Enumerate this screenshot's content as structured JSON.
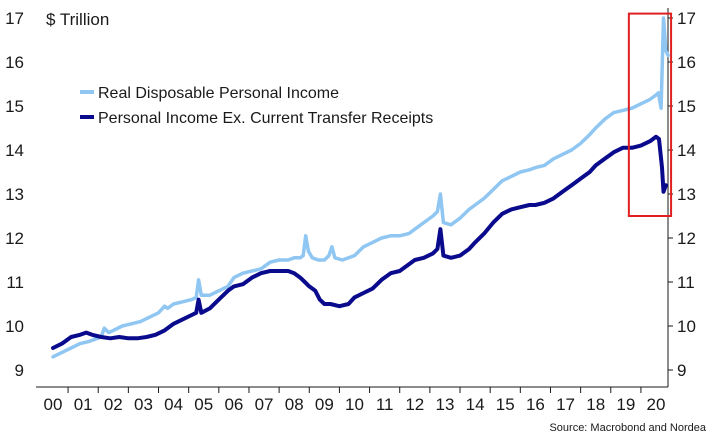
{
  "chart_data": {
    "type": "line",
    "unit_label": "$ Trillion",
    "source": "Source: Macrobond and Nordea",
    "ylim": [
      9,
      17
    ],
    "y_ticks": [
      9,
      10,
      11,
      12,
      13,
      14,
      15,
      16,
      17
    ],
    "xlim": [
      2000,
      2020.75
    ],
    "x_ticks": [
      "00",
      "01",
      "02",
      "03",
      "04",
      "05",
      "06",
      "07",
      "08",
      "09",
      "10",
      "11",
      "12",
      "13",
      "14",
      "15",
      "16",
      "17",
      "18",
      "19",
      "20"
    ],
    "legend_placement": "top-left",
    "highlight": {
      "x_range": [
        2019.1,
        2020.5
      ],
      "y_range": [
        12.5,
        17.1
      ],
      "color": "#e02020"
    },
    "series": [
      {
        "name": "Real Disposable Personal Income",
        "color": "#8fc6f2",
        "points": [
          [
            2000.0,
            9.3
          ],
          [
            2000.3,
            9.4
          ],
          [
            2000.6,
            9.5
          ],
          [
            2000.9,
            9.6
          ],
          [
            2001.2,
            9.65
          ],
          [
            2001.4,
            9.7
          ],
          [
            2001.6,
            9.75
          ],
          [
            2001.7,
            9.95
          ],
          [
            2001.85,
            9.85
          ],
          [
            2002.0,
            9.9
          ],
          [
            2002.3,
            10.0
          ],
          [
            2002.6,
            10.05
          ],
          [
            2002.9,
            10.1
          ],
          [
            2003.2,
            10.2
          ],
          [
            2003.5,
            10.3
          ],
          [
            2003.7,
            10.45
          ],
          [
            2003.8,
            10.4
          ],
          [
            2004.0,
            10.5
          ],
          [
            2004.3,
            10.55
          ],
          [
            2004.6,
            10.6
          ],
          [
            2004.75,
            10.65
          ],
          [
            2004.83,
            11.05
          ],
          [
            2004.92,
            10.7
          ],
          [
            2005.2,
            10.7
          ],
          [
            2005.5,
            10.8
          ],
          [
            2005.8,
            10.9
          ],
          [
            2006.0,
            11.1
          ],
          [
            2006.3,
            11.2
          ],
          [
            2006.6,
            11.25
          ],
          [
            2006.9,
            11.3
          ],
          [
            2007.2,
            11.45
          ],
          [
            2007.5,
            11.5
          ],
          [
            2007.8,
            11.5
          ],
          [
            2008.0,
            11.55
          ],
          [
            2008.2,
            11.55
          ],
          [
            2008.3,
            11.6
          ],
          [
            2008.38,
            12.05
          ],
          [
            2008.47,
            11.7
          ],
          [
            2008.6,
            11.55
          ],
          [
            2008.8,
            11.5
          ],
          [
            2009.0,
            11.5
          ],
          [
            2009.15,
            11.6
          ],
          [
            2009.25,
            11.8
          ],
          [
            2009.35,
            11.55
          ],
          [
            2009.6,
            11.5
          ],
          [
            2010.0,
            11.6
          ],
          [
            2010.3,
            11.8
          ],
          [
            2010.6,
            11.9
          ],
          [
            2010.9,
            12.0
          ],
          [
            2011.2,
            12.05
          ],
          [
            2011.5,
            12.05
          ],
          [
            2011.8,
            12.1
          ],
          [
            2012.0,
            12.2
          ],
          [
            2012.3,
            12.35
          ],
          [
            2012.6,
            12.5
          ],
          [
            2012.75,
            12.6
          ],
          [
            2012.85,
            13.0
          ],
          [
            2012.95,
            12.35
          ],
          [
            2013.2,
            12.3
          ],
          [
            2013.5,
            12.45
          ],
          [
            2013.8,
            12.65
          ],
          [
            2014.0,
            12.75
          ],
          [
            2014.3,
            12.9
          ],
          [
            2014.6,
            13.1
          ],
          [
            2014.9,
            13.3
          ],
          [
            2015.2,
            13.4
          ],
          [
            2015.5,
            13.5
          ],
          [
            2015.8,
            13.55
          ],
          [
            2016.0,
            13.6
          ],
          [
            2016.3,
            13.65
          ],
          [
            2016.6,
            13.8
          ],
          [
            2016.9,
            13.9
          ],
          [
            2017.2,
            14.0
          ],
          [
            2017.5,
            14.15
          ],
          [
            2017.8,
            14.35
          ],
          [
            2018.0,
            14.5
          ],
          [
            2018.3,
            14.7
          ],
          [
            2018.6,
            14.85
          ],
          [
            2018.9,
            14.9
          ],
          [
            2019.2,
            14.95
          ],
          [
            2019.5,
            15.05
          ],
          [
            2019.8,
            15.15
          ],
          [
            2020.0,
            15.25
          ],
          [
            2020.08,
            15.3
          ],
          [
            2020.17,
            14.95
          ],
          [
            2020.25,
            17.0
          ],
          [
            2020.33,
            16.25
          ],
          [
            2020.4,
            16.15
          ]
        ]
      },
      {
        "name": "Personal Income Ex. Current Transfer Receipts",
        "color": "#0a0a8c",
        "points": [
          [
            2000.0,
            9.5
          ],
          [
            2000.3,
            9.6
          ],
          [
            2000.6,
            9.75
          ],
          [
            2000.9,
            9.8
          ],
          [
            2001.1,
            9.85
          ],
          [
            2001.3,
            9.8
          ],
          [
            2001.6,
            9.75
          ],
          [
            2001.9,
            9.72
          ],
          [
            2002.2,
            9.75
          ],
          [
            2002.5,
            9.72
          ],
          [
            2002.8,
            9.72
          ],
          [
            2003.1,
            9.75
          ],
          [
            2003.4,
            9.8
          ],
          [
            2003.7,
            9.9
          ],
          [
            2004.0,
            10.05
          ],
          [
            2004.3,
            10.15
          ],
          [
            2004.6,
            10.25
          ],
          [
            2004.75,
            10.3
          ],
          [
            2004.83,
            10.6
          ],
          [
            2004.92,
            10.3
          ],
          [
            2005.2,
            10.4
          ],
          [
            2005.5,
            10.6
          ],
          [
            2005.8,
            10.8
          ],
          [
            2006.0,
            10.9
          ],
          [
            2006.3,
            10.95
          ],
          [
            2006.6,
            11.1
          ],
          [
            2006.9,
            11.2
          ],
          [
            2007.2,
            11.25
          ],
          [
            2007.5,
            11.25
          ],
          [
            2007.8,
            11.25
          ],
          [
            2008.0,
            11.2
          ],
          [
            2008.2,
            11.1
          ],
          [
            2008.35,
            11.0
          ],
          [
            2008.5,
            10.9
          ],
          [
            2008.7,
            10.8
          ],
          [
            2008.85,
            10.6
          ],
          [
            2009.0,
            10.5
          ],
          [
            2009.2,
            10.5
          ],
          [
            2009.5,
            10.45
          ],
          [
            2009.8,
            10.5
          ],
          [
            2010.0,
            10.65
          ],
          [
            2010.3,
            10.75
          ],
          [
            2010.6,
            10.85
          ],
          [
            2010.9,
            11.05
          ],
          [
            2011.2,
            11.2
          ],
          [
            2011.5,
            11.25
          ],
          [
            2011.8,
            11.4
          ],
          [
            2012.0,
            11.5
          ],
          [
            2012.3,
            11.55
          ],
          [
            2012.6,
            11.65
          ],
          [
            2012.75,
            11.75
          ],
          [
            2012.85,
            12.2
          ],
          [
            2012.95,
            11.6
          ],
          [
            2013.2,
            11.55
          ],
          [
            2013.5,
            11.6
          ],
          [
            2013.8,
            11.75
          ],
          [
            2014.0,
            11.9
          ],
          [
            2014.3,
            12.1
          ],
          [
            2014.6,
            12.35
          ],
          [
            2014.9,
            12.55
          ],
          [
            2015.2,
            12.65
          ],
          [
            2015.5,
            12.7
          ],
          [
            2015.8,
            12.75
          ],
          [
            2016.0,
            12.75
          ],
          [
            2016.3,
            12.8
          ],
          [
            2016.6,
            12.9
          ],
          [
            2016.9,
            13.05
          ],
          [
            2017.2,
            13.2
          ],
          [
            2017.5,
            13.35
          ],
          [
            2017.8,
            13.5
          ],
          [
            2018.0,
            13.65
          ],
          [
            2018.3,
            13.8
          ],
          [
            2018.6,
            13.95
          ],
          [
            2018.9,
            14.05
          ],
          [
            2019.2,
            14.05
          ],
          [
            2019.5,
            14.1
          ],
          [
            2019.8,
            14.2
          ],
          [
            2020.0,
            14.3
          ],
          [
            2020.1,
            14.25
          ],
          [
            2020.2,
            13.6
          ],
          [
            2020.25,
            13.05
          ],
          [
            2020.33,
            13.2
          ]
        ]
      }
    ]
  }
}
